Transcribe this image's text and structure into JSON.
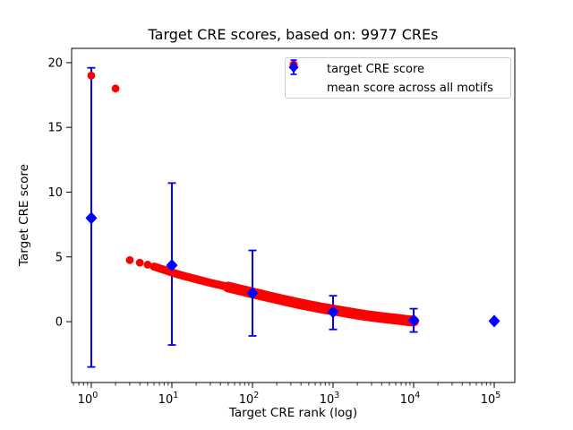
{
  "figure": {
    "title": "Target CRE scores, based on: 9977 CREs",
    "xlabel": "Target CRE rank (log)",
    "ylabel": "Target CRE score",
    "background": "#ffffff",
    "spine_color": "#000000"
  },
  "legend": {
    "entries": [
      {
        "label": "target CRE score",
        "marker": "circle",
        "color": "#ff0000"
      },
      {
        "label": "mean score across all motifs",
        "marker": "diamond-with-errorbar",
        "color": "#0000ff"
      }
    ],
    "position": "upper right"
  },
  "chart_data": {
    "type": "scatter",
    "title": "Target CRE scores, based on: 9977 CREs",
    "xlabel": "Target CRE rank (log)",
    "ylabel": "Target CRE score",
    "x_scale": "log",
    "xlim": [
      0.57,
      180000
    ],
    "ylim": [
      -4.7,
      21.1
    ],
    "x_ticks": {
      "values": [
        1,
        10,
        100,
        1000,
        10000,
        100000
      ],
      "base_label": "10",
      "exponents": [
        "0",
        "1",
        "2",
        "3",
        "4",
        "5"
      ]
    },
    "y_ticks": [
      0,
      5,
      10,
      15,
      20
    ],
    "grid": false,
    "series": [
      {
        "name": "target CRE score",
        "marker": "circle",
        "color": "#ff0000",
        "n_points_shown": 9977,
        "points": [
          [
            1,
            19.0
          ],
          [
            2,
            18.0
          ],
          [
            3,
            4.75
          ],
          [
            4,
            4.55
          ],
          [
            5,
            4.4
          ],
          [
            6,
            4.25
          ],
          [
            7,
            4.12
          ],
          [
            8,
            4.0
          ],
          [
            9,
            3.9
          ],
          [
            10,
            3.8
          ],
          [
            12,
            3.65
          ],
          [
            15,
            3.48
          ],
          [
            20,
            3.28
          ],
          [
            25,
            3.12
          ],
          [
            30,
            3.0
          ],
          [
            40,
            2.82
          ],
          [
            50,
            2.67
          ],
          [
            65,
            2.5
          ],
          [
            80,
            2.37
          ],
          [
            100,
            2.22
          ],
          [
            130,
            2.05
          ],
          [
            160,
            1.92
          ],
          [
            200,
            1.78
          ],
          [
            250,
            1.64
          ],
          [
            300,
            1.53
          ],
          [
            400,
            1.36
          ],
          [
            500,
            1.24
          ],
          [
            650,
            1.1
          ],
          [
            800,
            1.0
          ],
          [
            1000,
            0.9
          ],
          [
            1300,
            0.78
          ],
          [
            1600,
            0.68
          ],
          [
            2000,
            0.58
          ],
          [
            2500,
            0.48
          ],
          [
            3200,
            0.4
          ],
          [
            4000,
            0.32
          ],
          [
            5000,
            0.25
          ],
          [
            6300,
            0.18
          ],
          [
            8000,
            0.1
          ],
          [
            9977,
            0.04
          ]
        ]
      },
      {
        "name": "mean score across all motifs",
        "marker": "diamond",
        "color": "#0000ff",
        "x": [
          1,
          10,
          100,
          1000,
          10000,
          100000
        ],
        "y": [
          8.0,
          4.35,
          2.2,
          0.75,
          0.1,
          0.05
        ],
        "err_top": [
          19.6,
          10.7,
          5.5,
          2.0,
          1.0,
          null
        ],
        "err_bottom": [
          -3.5,
          -1.8,
          -1.1,
          -0.6,
          -0.8,
          null
        ]
      }
    ]
  }
}
